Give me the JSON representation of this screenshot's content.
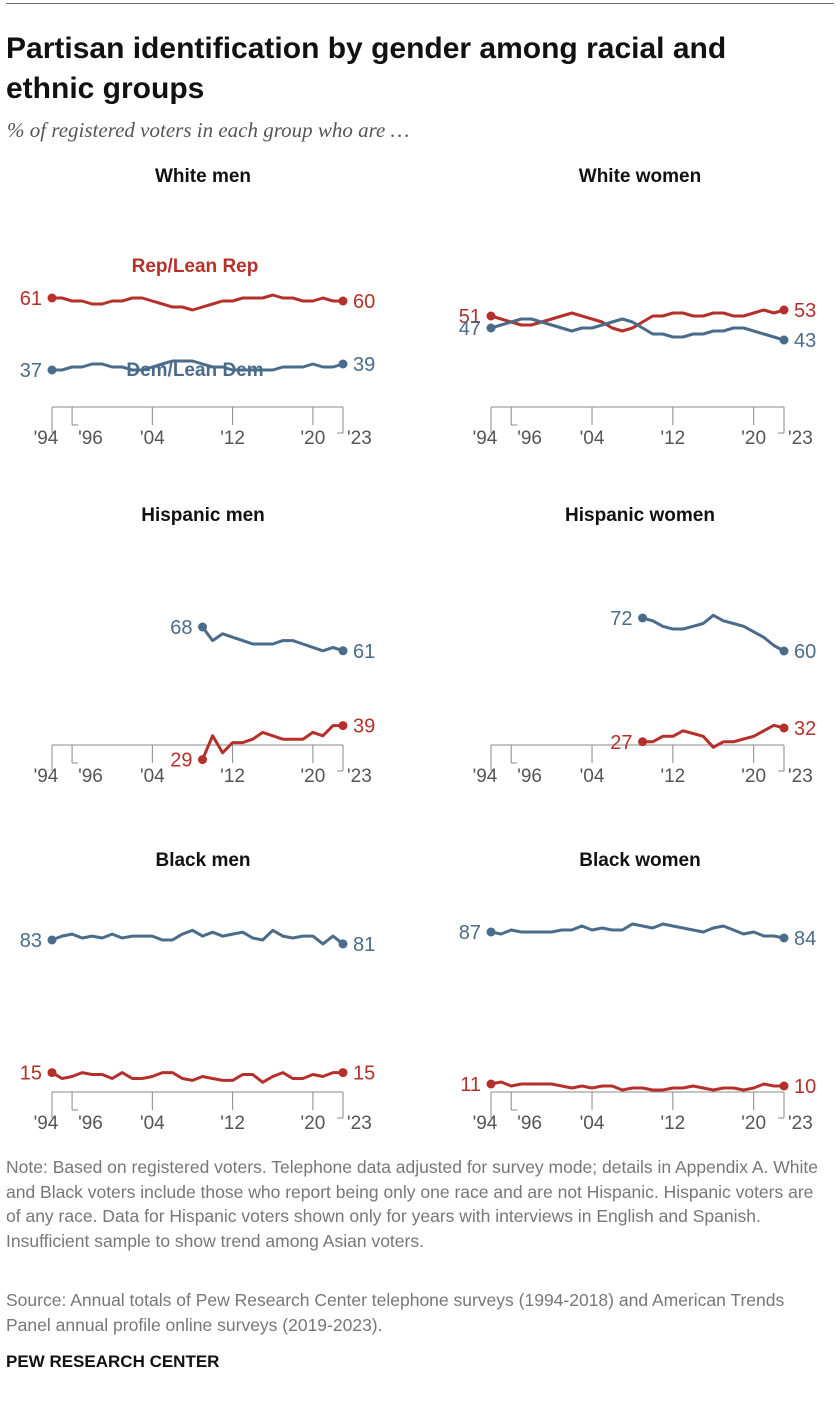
{
  "header": {
    "title": "Partisan identification by gender among racial and ethnic groups",
    "subtitle": "% of registered voters in each group who are …"
  },
  "footer": {
    "note": "Note: Based on registered voters. Telephone data adjusted for survey mode; details in Appendix A. White and Black voters include those who report being only one race and are not Hispanic. Hispanic voters are of any race. Data for Hispanic voters shown only for years with interviews in English and Spanish. Insufficient sample to show trend among Asian voters.",
    "source": "Source: Annual totals of Pew Research Center telephone surveys (1994-2018) and American Trends Panel annual profile online surveys (2019-2023).",
    "org": "PEW RESEARCH CENTER"
  },
  "colors": {
    "rep": "#b5302a",
    "dem": "#4a6b8a",
    "axis": "#888888"
  },
  "chart_data": [
    {
      "type": "line",
      "title": "White men",
      "x": [
        1994,
        1995,
        1996,
        1997,
        1998,
        1999,
        2000,
        2001,
        2002,
        2003,
        2004,
        2005,
        2006,
        2007,
        2008,
        2009,
        2010,
        2011,
        2012,
        2013,
        2014,
        2015,
        2016,
        2017,
        2018,
        2019,
        2020,
        2021,
        2022,
        2023
      ],
      "x_ticks": [
        "'94",
        "'96",
        "'04",
        "'12",
        "'20",
        "'23"
      ],
      "series": [
        {
          "name": "Rep/Lean Rep",
          "values": [
            61,
            61,
            60,
            60,
            59,
            59,
            60,
            60,
            61,
            61,
            60,
            59,
            58,
            58,
            57,
            58,
            59,
            60,
            60,
            61,
            61,
            61,
            62,
            61,
            61,
            60,
            60,
            61,
            60,
            60
          ]
        },
        {
          "name": "Dem/Lean Dem",
          "values": [
            37,
            37,
            38,
            38,
            39,
            39,
            38,
            38,
            37,
            37,
            38,
            39,
            40,
            40,
            40,
            39,
            38,
            38,
            37,
            37,
            37,
            37,
            37,
            38,
            38,
            38,
            39,
            38,
            38,
            39
          ]
        }
      ],
      "end_labels": {
        "rep_start": "61",
        "rep_end": "60",
        "dem_start": "37",
        "dem_end": "39"
      }
    },
    {
      "type": "line",
      "title": "White women",
      "x": [
        1994,
        1995,
        1996,
        1997,
        1998,
        1999,
        2000,
        2001,
        2002,
        2003,
        2004,
        2005,
        2006,
        2007,
        2008,
        2009,
        2010,
        2011,
        2012,
        2013,
        2014,
        2015,
        2016,
        2017,
        2018,
        2019,
        2020,
        2021,
        2022,
        2023
      ],
      "x_ticks": [
        "'94",
        "'96",
        "'04",
        "'12",
        "'20",
        "'23"
      ],
      "series": [
        {
          "name": "Rep/Lean Rep",
          "values": [
            51,
            50,
            49,
            48,
            48,
            49,
            50,
            51,
            52,
            51,
            50,
            49,
            47,
            46,
            47,
            49,
            51,
            51,
            52,
            52,
            51,
            51,
            52,
            52,
            51,
            51,
            52,
            53,
            52,
            53
          ]
        },
        {
          "name": "Dem/Lean Dem",
          "values": [
            47,
            48,
            49,
            50,
            50,
            49,
            48,
            47,
            46,
            47,
            47,
            48,
            49,
            50,
            49,
            47,
            45,
            45,
            44,
            44,
            45,
            45,
            46,
            46,
            47,
            47,
            46,
            45,
            44,
            43
          ]
        }
      ],
      "end_labels": {
        "rep_start": "51",
        "rep_end": "53",
        "dem_start": "47",
        "dem_end": "43"
      }
    },
    {
      "type": "line",
      "title": "Hispanic men",
      "x": [
        2009,
        2010,
        2011,
        2012,
        2013,
        2014,
        2015,
        2016,
        2017,
        2018,
        2019,
        2020,
        2021,
        2022,
        2023
      ],
      "x_ticks": [
        "'94",
        "'96",
        "'04",
        "'12",
        "'20",
        "'23"
      ],
      "series": [
        {
          "name": "Rep/Lean Rep",
          "values": [
            29,
            36,
            31,
            34,
            34,
            35,
            37,
            36,
            35,
            35,
            35,
            37,
            36,
            39,
            39
          ]
        },
        {
          "name": "Dem/Lean Dem",
          "values": [
            68,
            64,
            66,
            65,
            64,
            63,
            63,
            63,
            64,
            64,
            63,
            62,
            61,
            62,
            61
          ]
        }
      ],
      "end_labels": {
        "rep_start": "29",
        "rep_end": "39",
        "dem_start": "68",
        "dem_end": "61"
      }
    },
    {
      "type": "line",
      "title": "Hispanic women",
      "x": [
        2009,
        2010,
        2011,
        2012,
        2013,
        2014,
        2015,
        2016,
        2017,
        2018,
        2019,
        2020,
        2021,
        2022,
        2023
      ],
      "x_ticks": [
        "'94",
        "'96",
        "'04",
        "'12",
        "'20",
        "'23"
      ],
      "series": [
        {
          "name": "Rep/Lean Rep",
          "values": [
            27,
            27,
            29,
            29,
            31,
            30,
            29,
            25,
            27,
            27,
            28,
            29,
            31,
            33,
            32
          ]
        },
        {
          "name": "Dem/Lean Dem",
          "values": [
            72,
            71,
            69,
            68,
            68,
            69,
            70,
            73,
            71,
            70,
            69,
            67,
            65,
            62,
            60
          ]
        }
      ],
      "end_labels": {
        "rep_start": "27",
        "rep_end": "32",
        "dem_start": "72",
        "dem_end": "60"
      }
    },
    {
      "type": "line",
      "title": "Black men",
      "x": [
        1994,
        1995,
        1996,
        1997,
        1998,
        1999,
        2000,
        2001,
        2002,
        2003,
        2004,
        2005,
        2006,
        2007,
        2008,
        2009,
        2010,
        2011,
        2012,
        2013,
        2014,
        2015,
        2016,
        2017,
        2018,
        2019,
        2020,
        2021,
        2022,
        2023
      ],
      "x_ticks": [
        "'94",
        "'96",
        "'04",
        "'12",
        "'20",
        "'23"
      ],
      "series": [
        {
          "name": "Rep/Lean Rep",
          "values": [
            15,
            12,
            13,
            15,
            14,
            14,
            12,
            15,
            12,
            12,
            13,
            15,
            15,
            12,
            11,
            13,
            12,
            11,
            11,
            14,
            14,
            10,
            13,
            15,
            12,
            12,
            14,
            13,
            15,
            15
          ]
        },
        {
          "name": "Dem/Lean Dem",
          "values": [
            83,
            85,
            86,
            84,
            85,
            84,
            86,
            84,
            85,
            85,
            85,
            83,
            83,
            86,
            88,
            85,
            87,
            85,
            86,
            87,
            84,
            83,
            88,
            85,
            84,
            85,
            85,
            81,
            85,
            81
          ]
        }
      ],
      "end_labels": {
        "rep_start": "15",
        "rep_end": "15",
        "dem_start": "83",
        "dem_end": "81"
      }
    },
    {
      "type": "line",
      "title": "Black women",
      "x": [
        1994,
        1995,
        1996,
        1997,
        1998,
        1999,
        2000,
        2001,
        2002,
        2003,
        2004,
        2005,
        2006,
        2007,
        2008,
        2009,
        2010,
        2011,
        2012,
        2013,
        2014,
        2015,
        2016,
        2017,
        2018,
        2019,
        2020,
        2021,
        2022,
        2023
      ],
      "x_ticks": [
        "'94",
        "'96",
        "'04",
        "'12",
        "'20",
        "'23"
      ],
      "series": [
        {
          "name": "Rep/Lean Rep",
          "values": [
            11,
            12,
            10,
            11,
            11,
            11,
            11,
            10,
            9,
            10,
            9,
            10,
            10,
            8,
            9,
            9,
            8,
            8,
            9,
            9,
            10,
            9,
            8,
            9,
            9,
            8,
            9,
            11,
            10,
            10
          ]
        },
        {
          "name": "Dem/Lean Dem",
          "values": [
            87,
            86,
            88,
            87,
            87,
            87,
            87,
            88,
            88,
            90,
            88,
            89,
            88,
            88,
            91,
            90,
            89,
            91,
            90,
            89,
            88,
            87,
            89,
            90,
            88,
            86,
            87,
            85,
            85,
            84
          ]
        }
      ],
      "end_labels": {
        "rep_start": "11",
        "rep_end": "10",
        "dem_start": "87",
        "dem_end": "84"
      }
    }
  ],
  "series_labels": {
    "rep": "Rep/Lean Rep",
    "dem": "Dem/Lean Dem"
  }
}
